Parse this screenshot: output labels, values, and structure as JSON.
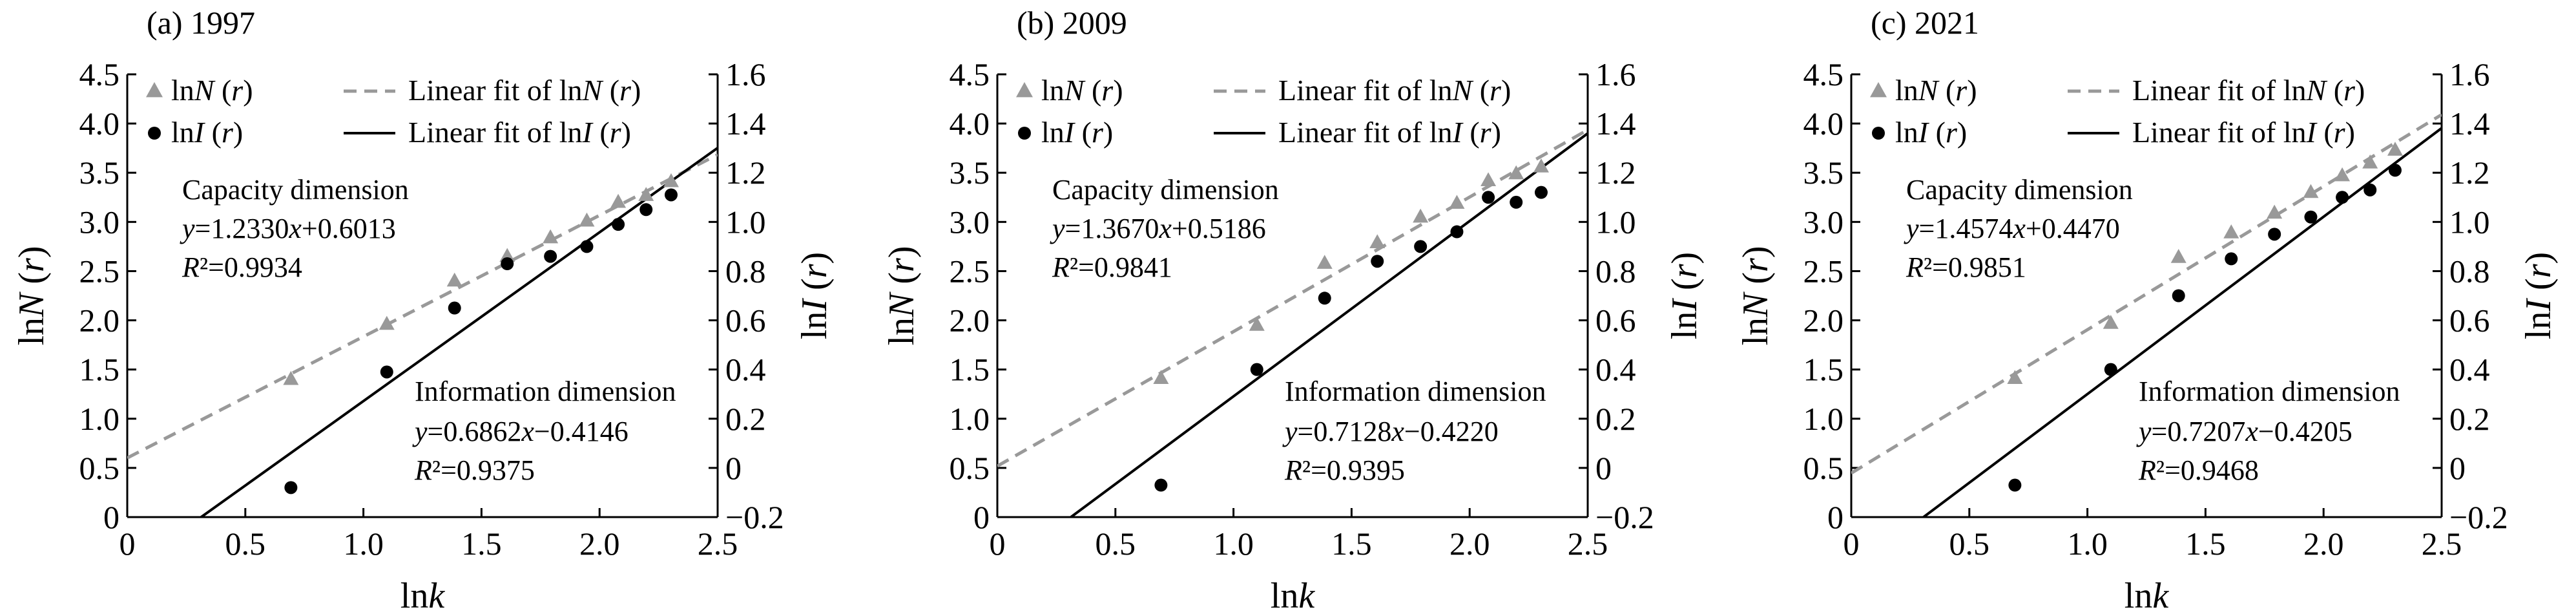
{
  "chart_data": [
    {
      "type": "scatter",
      "title": "(a) 1997",
      "xlabel": "lnk",
      "ylabel": "lnN (r)",
      "y2label": "lnI (r)",
      "xlim": [
        0,
        2.5
      ],
      "ylim": [
        0,
        4.5
      ],
      "y2lim": [
        -0.2,
        1.6
      ],
      "xticks": [
        "0",
        "0.5",
        "1.0",
        "1.5",
        "2.0",
        "2.5"
      ],
      "yticks": [
        "0",
        "0.5",
        "1.0",
        "1.5",
        "2.0",
        "2.5",
        "3.0",
        "3.5",
        "4.0",
        "4.5"
      ],
      "y2ticks": [
        "−0.2",
        "0",
        "0.2",
        "0.4",
        "0.6",
        "0.8",
        "1.0",
        "1.2",
        "1.4",
        "1.6"
      ],
      "grid": false,
      "legend_position": "top-left",
      "legend": [
        "lnN (r)",
        "Linear fit of lnN (r)",
        "lnI (r)",
        "Linear fit of lnI (r)"
      ],
      "series": [
        {
          "name": "lnN (r)",
          "axis": "left",
          "marker": "triangle",
          "color": "#999999",
          "x": [
            0.693,
            1.099,
            1.386,
            1.609,
            1.792,
            1.946,
            2.079,
            2.197,
            2.303
          ],
          "y": [
            1.4,
            1.96,
            2.4,
            2.65,
            2.84,
            3.01,
            3.2,
            3.27,
            3.41
          ]
        },
        {
          "name": "lnI (r)",
          "axis": "right",
          "marker": "circle",
          "color": "#000000",
          "x": [
            0.693,
            1.099,
            1.386,
            1.609,
            1.792,
            1.946,
            2.079,
            2.197,
            2.303
          ],
          "y": [
            -0.08,
            0.39,
            0.65,
            0.83,
            0.86,
            0.9,
            0.99,
            1.05,
            1.11
          ]
        }
      ],
      "fits": [
        {
          "name": "Linear fit of lnN (r)",
          "axis": "left",
          "style": "dashed",
          "color": "#999999",
          "slope": 1.233,
          "intercept": 0.6013
        },
        {
          "name": "Linear fit of lnI (r)",
          "axis": "right",
          "style": "solid",
          "color": "#000000",
          "slope": 0.6862,
          "intercept": -0.4146
        }
      ],
      "annotations": {
        "capacity_title": "Capacity dimension",
        "capacity_eq": "y=1.2330x+0.6013",
        "capacity_r2": "R²=0.9934",
        "info_title": "Information dimension",
        "info_eq": "y=0.6862x−0.4146",
        "info_r2": "R²=0.9375"
      }
    },
    {
      "type": "scatter",
      "title": "(b) 2009",
      "xlabel": "lnk",
      "ylabel": "lnN (r)",
      "y2label": "lnI (r)",
      "xlim": [
        0,
        2.5
      ],
      "ylim": [
        0,
        4.5
      ],
      "y2lim": [
        -0.2,
        1.6
      ],
      "xticks": [
        "0",
        "0.5",
        "1.0",
        "1.5",
        "2.0",
        "2.5"
      ],
      "yticks": [
        "0",
        "0.5",
        "1.0",
        "1.5",
        "2.0",
        "2.5",
        "3.0",
        "3.5",
        "4.0",
        "4.5"
      ],
      "y2ticks": [
        "−0.2",
        "0",
        "0.2",
        "0.4",
        "0.6",
        "0.8",
        "1.0",
        "1.2",
        "1.4",
        "1.6"
      ],
      "grid": false,
      "legend_position": "top-left",
      "legend": [
        "lnN (r)",
        "Linear fit of lnN (r)",
        "lnI (r)",
        "Linear fit of lnI (r)"
      ],
      "series": [
        {
          "name": "lnN (r)",
          "axis": "left",
          "marker": "triangle",
          "color": "#999999",
          "x": [
            0.693,
            1.099,
            1.386,
            1.609,
            1.792,
            1.946,
            2.079,
            2.197,
            2.303
          ],
          "y": [
            1.41,
            1.95,
            2.58,
            2.79,
            3.05,
            3.19,
            3.42,
            3.49,
            3.56
          ]
        },
        {
          "name": "lnI (r)",
          "axis": "right",
          "marker": "circle",
          "color": "#000000",
          "x": [
            0.693,
            1.099,
            1.386,
            1.609,
            1.792,
            1.946,
            2.079,
            2.197,
            2.303
          ],
          "y": [
            -0.07,
            0.4,
            0.69,
            0.84,
            0.9,
            0.96,
            1.1,
            1.08,
            1.12
          ]
        }
      ],
      "fits": [
        {
          "name": "Linear fit of lnN (r)",
          "axis": "left",
          "style": "dashed",
          "color": "#999999",
          "slope": 1.367,
          "intercept": 0.5186
        },
        {
          "name": "Linear fit of lnI (r)",
          "axis": "right",
          "style": "solid",
          "color": "#000000",
          "slope": 0.7128,
          "intercept": -0.422
        }
      ],
      "annotations": {
        "capacity_title": "Capacity dimension",
        "capacity_eq": "y=1.3670x+0.5186",
        "capacity_r2": "R²=0.9841",
        "info_title": "Information dimension",
        "info_eq": "y=0.7128x−0.4220",
        "info_r2": "R²=0.9395"
      }
    },
    {
      "type": "scatter",
      "title": "(c) 2021",
      "xlabel": "lnk",
      "ylabel": "lnN (r)",
      "y2label": "lnI (r)",
      "xlim": [
        0,
        2.5
      ],
      "ylim": [
        0,
        4.5
      ],
      "y2lim": [
        -0.2,
        1.6
      ],
      "xticks": [
        "0",
        "0.5",
        "1.0",
        "1.5",
        "2.0",
        "2.5"
      ],
      "yticks": [
        "0",
        "0.5",
        "1.0",
        "1.5",
        "2.0",
        "2.5",
        "3.0",
        "3.5",
        "4.0",
        "4.5"
      ],
      "y2ticks": [
        "−0.2",
        "0",
        "0.2",
        "0.4",
        "0.6",
        "0.8",
        "1.0",
        "1.2",
        "1.4",
        "1.6"
      ],
      "grid": false,
      "legend_position": "top-left",
      "legend": [
        "lnN (r)",
        "Linear fit of lnN (r)",
        "lnI (r)",
        "Linear fit of lnI (r)"
      ],
      "series": [
        {
          "name": "lnN (r)",
          "axis": "left",
          "marker": "triangle",
          "color": "#999999",
          "x": [
            0.693,
            1.099,
            1.386,
            1.609,
            1.792,
            1.946,
            2.079,
            2.197,
            2.303
          ],
          "y": [
            1.41,
            1.97,
            2.64,
            2.89,
            3.09,
            3.3,
            3.47,
            3.6,
            3.73
          ]
        },
        {
          "name": "lnI (r)",
          "axis": "right",
          "marker": "circle",
          "color": "#000000",
          "x": [
            0.693,
            1.099,
            1.386,
            1.609,
            1.792,
            1.946,
            2.079,
            2.197,
            2.303
          ],
          "y": [
            -0.07,
            0.4,
            0.7,
            0.85,
            0.95,
            1.02,
            1.1,
            1.13,
            1.21
          ]
        }
      ],
      "fits": [
        {
          "name": "Linear fit of lnN (r)",
          "axis": "left",
          "style": "dashed",
          "color": "#999999",
          "slope": 1.4574,
          "intercept": 0.447
        },
        {
          "name": "Linear fit of lnI (r)",
          "axis": "right",
          "style": "solid",
          "color": "#000000",
          "slope": 0.7207,
          "intercept": -0.4205
        }
      ],
      "annotations": {
        "capacity_title": "Capacity dimension",
        "capacity_eq": "y=1.4574x+0.4470",
        "capacity_r2": "R²=0.9851",
        "info_title": "Information dimension",
        "info_eq": "y=0.7207x−0.4205",
        "info_r2": "R²=0.9468"
      }
    }
  ]
}
